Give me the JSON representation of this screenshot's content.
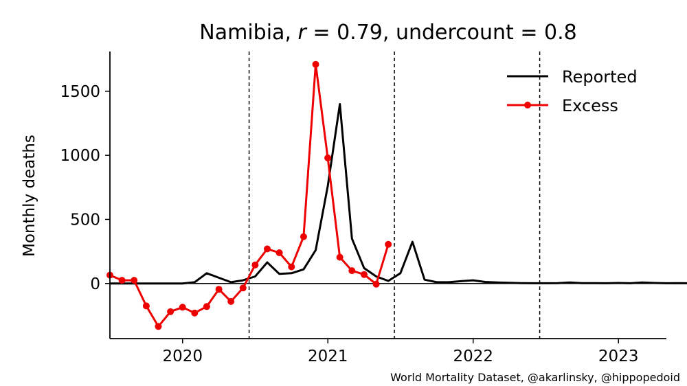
{
  "chart_data": {
    "type": "line",
    "title": "Namibia, r = 0.79, undercount = 0.8",
    "title_parts": {
      "country": "Namibia, ",
      "r_symbol": "r",
      "r_value": " = 0.79, undercount = 0.8"
    },
    "xlabel": "",
    "ylabel": "Monthly deaths",
    "credit": "World Mortality Dataset, @akarlinsky, @hippopedoid",
    "xlim": [
      2019.5,
      2023.33
    ],
    "ylim": [
      -430,
      1810
    ],
    "x_ticks": [
      2020,
      2021,
      2022,
      2023
    ],
    "x_tick_labels": [
      "2020",
      "2021",
      "2022",
      "2023"
    ],
    "y_ticks": [
      0,
      500,
      1000,
      1500
    ],
    "y_tick_labels": [
      "0",
      "500",
      "1000",
      "1500"
    ],
    "vlines": [
      2020.458,
      2021.458,
      2022.458
    ],
    "zero_line": true,
    "legend_position": "top-right",
    "series": [
      {
        "name": "Reported",
        "color": "#000000",
        "marker": false,
        "x_start": 2019.5,
        "x_step": 0.0833,
        "values": [
          0,
          0,
          0,
          0,
          0,
          0,
          0,
          10,
          80,
          45,
          10,
          25,
          55,
          165,
          75,
          80,
          110,
          260,
          760,
          1400,
          350,
          120,
          55,
          20,
          80,
          325,
          30,
          10,
          10,
          18,
          25,
          12,
          8,
          5,
          3,
          2,
          2,
          3,
          8,
          3,
          3,
          2,
          4,
          2,
          8,
          4,
          2,
          3,
          2,
          2
        ]
      },
      {
        "name": "Excess",
        "color": "#ee0000",
        "marker": true,
        "x_start": 2019.5,
        "x_step": 0.0833,
        "values": [
          65,
          25,
          25,
          -175,
          -335,
          -220,
          -185,
          -230,
          -180,
          -45,
          -140,
          -35,
          145,
          270,
          240,
          130,
          365,
          1710,
          980,
          205,
          100,
          70,
          -5,
          305
        ]
      }
    ]
  }
}
